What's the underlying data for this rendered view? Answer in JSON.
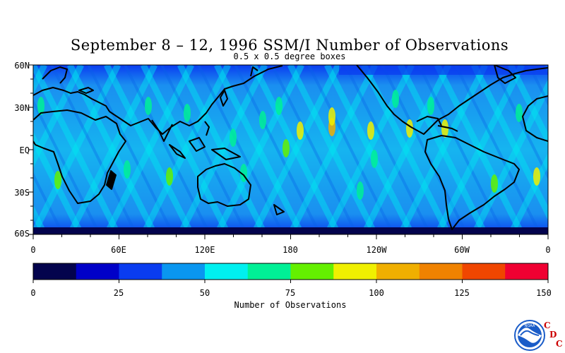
{
  "title": "September 8 – 12, 1996 SSM/I Number of Observations",
  "subtitle": "0.5 x 0.5 degree boxes",
  "lat_labels": [
    "60N",
    "30N",
    "EQ",
    "30S",
    "60S"
  ],
  "lon_labels": [
    "0",
    "60E",
    "120E",
    "180",
    "120W",
    "60W",
    "0"
  ],
  "colorbar": {
    "title": "Number of Observations",
    "ticks": [
      "0",
      "25",
      "50",
      "75",
      "100",
      "125",
      "150"
    ],
    "colors": [
      "#03034d",
      "#0000c8",
      "#0a3cf0",
      "#0a96f0",
      "#00f0f0",
      "#00f096",
      "#64f000",
      "#f0f000",
      "#f0af00",
      "#f08200",
      "#f04600",
      "#f00032"
    ]
  },
  "logo": {
    "icon": "noaa-seal-icon",
    "noaa_text": "NOAA",
    "cdc_letters": [
      "C",
      "D",
      "C"
    ],
    "cdc_color": "#cc0000"
  }
}
